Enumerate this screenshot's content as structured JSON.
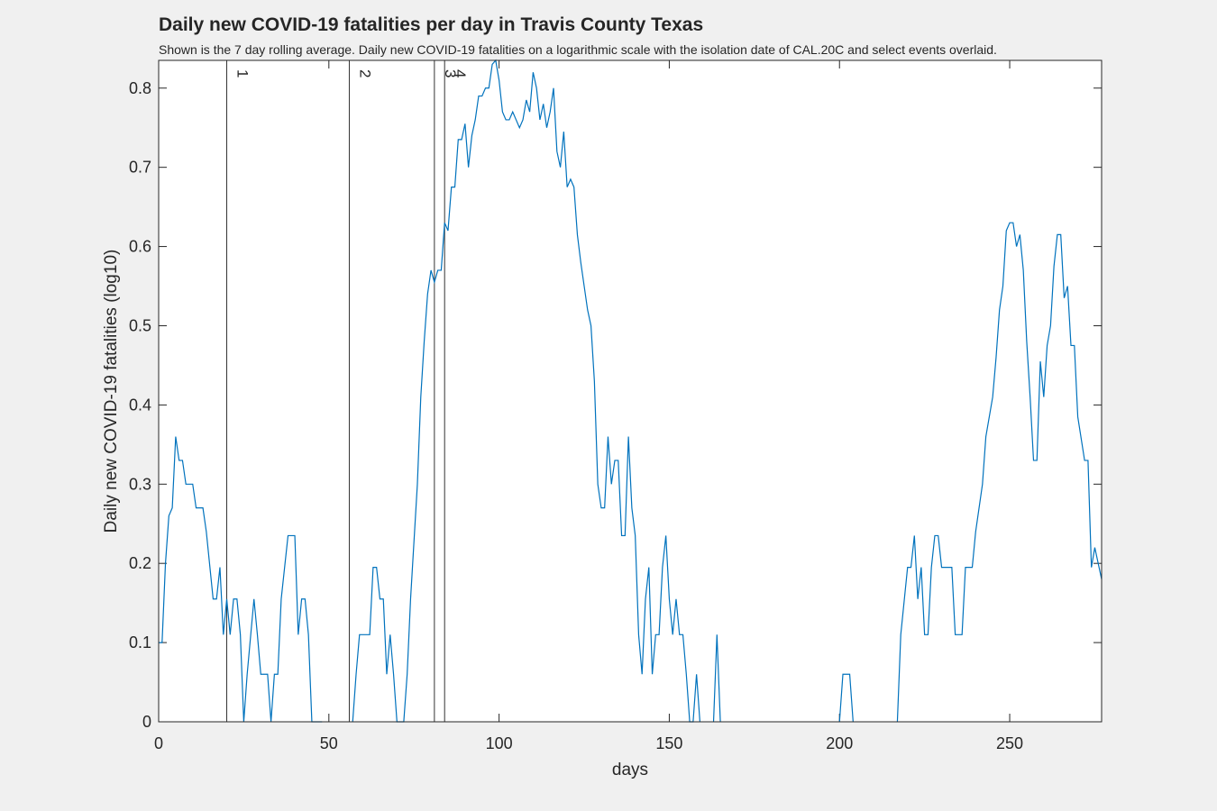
{
  "chart_data": {
    "type": "line",
    "title": "Daily new COVID-19 fatalities per day in Travis County Texas",
    "subtitle": "Shown is the 7 day rolling average. Daily new COVID-19 fatalities on a logarithmic scale with the isolation date of CAL.20C and select events overlaid.",
    "xlabel": "days",
    "ylabel": "Daily new COVID-19 fatalities (log10)",
    "color": "#0072bd",
    "xlim": [
      0,
      277
    ],
    "ylim": [
      0,
      0.835
    ],
    "xticks": [
      0,
      50,
      100,
      150,
      200,
      250
    ],
    "yticks": [
      0,
      0.1,
      0.2,
      0.3,
      0.4,
      0.5,
      0.6,
      0.7,
      0.8
    ],
    "events": [
      {
        "x": 20,
        "label": "1"
      },
      {
        "x": 56,
        "label": "2"
      },
      {
        "x": 81,
        "label": "3"
      },
      {
        "x": 84,
        "label": "4"
      }
    ],
    "x": [
      0,
      1,
      2,
      3,
      4,
      5,
      6,
      7,
      8,
      10,
      11,
      13,
      14,
      16,
      17,
      18,
      19,
      20,
      21,
      22,
      23,
      24,
      25,
      26,
      28,
      29,
      30,
      32,
      33,
      34,
      35,
      36,
      38,
      40,
      41,
      42,
      43,
      44,
      45,
      48,
      52,
      57,
      58,
      59,
      62,
      63,
      64,
      65,
      66,
      67,
      68,
      69,
      70,
      72,
      73,
      74,
      76,
      77,
      78,
      79,
      80,
      81,
      82,
      83,
      84,
      85,
      86,
      87,
      88,
      89,
      90,
      91,
      92,
      93,
      94,
      95,
      96,
      97,
      98,
      99,
      100,
      101,
      102,
      103,
      104,
      105,
      106,
      107,
      108,
      109,
      110,
      111,
      112,
      113,
      114,
      115,
      116,
      117,
      118,
      119,
      120,
      121,
      122,
      123,
      124,
      125,
      126,
      127,
      128,
      129,
      130,
      131,
      132,
      133,
      134,
      135,
      136,
      137,
      138,
      139,
      140,
      141,
      142,
      143,
      144,
      145,
      146,
      147,
      148,
      149,
      150,
      151,
      152,
      153,
      154,
      155,
      156,
      157,
      158,
      159,
      161,
      163,
      164,
      165,
      180,
      200,
      201,
      203,
      204,
      210,
      217,
      218,
      220,
      221,
      222,
      223,
      224,
      225,
      226,
      227,
      228,
      229,
      230,
      233,
      234,
      236,
      237,
      239,
      240,
      242,
      243,
      245,
      246,
      247,
      248,
      249,
      250,
      251,
      252,
      253,
      254,
      255,
      256,
      257,
      258,
      259,
      260,
      261,
      262,
      263,
      264,
      265,
      266,
      267,
      268,
      269,
      270,
      272,
      273,
      274,
      275,
      276,
      277
    ],
    "values": [
      0.1,
      0.1,
      0.2,
      0.26,
      0.27,
      0.36,
      0.33,
      0.33,
      0.3,
      0.3,
      0.27,
      0.27,
      0.24,
      0.155,
      0.155,
      0.195,
      0.11,
      0.155,
      0.11,
      0.155,
      0.155,
      0.11,
      0,
      0.06,
      0.155,
      0.11,
      0.06,
      0.06,
      0,
      0.06,
      0.06,
      0.155,
      0.235,
      0.235,
      0.11,
      0.155,
      0.155,
      0.11,
      0,
      0,
      null,
      0,
      0.06,
      0.11,
      0.11,
      0.195,
      0.195,
      0.155,
      0.155,
      0.06,
      0.11,
      0.06,
      0,
      0,
      0.06,
      0.155,
      0.3,
      0.41,
      0.48,
      0.54,
      0.57,
      0.555,
      0.57,
      0.57,
      0.63,
      0.62,
      0.675,
      0.675,
      0.735,
      0.735,
      0.755,
      0.7,
      0.74,
      0.76,
      0.79,
      0.79,
      0.8,
      0.8,
      0.83,
      0.835,
      0.81,
      0.77,
      0.76,
      0.76,
      0.77,
      0.76,
      0.75,
      0.76,
      0.785,
      0.77,
      0.82,
      0.8,
      0.76,
      0.78,
      0.75,
      0.77,
      0.8,
      0.72,
      0.7,
      0.745,
      0.675,
      0.685,
      0.675,
      0.615,
      0.58,
      0.55,
      0.52,
      0.5,
      0.43,
      0.3,
      0.27,
      0.27,
      0.36,
      0.3,
      0.33,
      0.33,
      0.235,
      0.235,
      0.36,
      0.27,
      0.235,
      0.11,
      0.06,
      0.155,
      0.195,
      0.06,
      0.11,
      0.11,
      0.195,
      0.235,
      0.155,
      0.11,
      0.155,
      0.11,
      0.11,
      0.06,
      0,
      0,
      0.06,
      0,
      null,
      0,
      0.11,
      0,
      null,
      0,
      0.06,
      0.06,
      0,
      null,
      0,
      0.11,
      0.195,
      0.195,
      0.235,
      0.155,
      0.195,
      0.11,
      0.11,
      0.195,
      0.235,
      0.235,
      0.195,
      0.195,
      0.11,
      0.11,
      0.195,
      0.195,
      0.24,
      0.3,
      0.36,
      0.41,
      0.46,
      0.52,
      0.55,
      0.62,
      0.63,
      0.63,
      0.6,
      0.615,
      0.57,
      0.48,
      0.41,
      0.33,
      0.33,
      0.455,
      0.41,
      0.475,
      0.5,
      0.575,
      0.615,
      0.615,
      0.535,
      0.55,
      0.475,
      0.475,
      0.385,
      0.33,
      0.33,
      0.195,
      0.22,
      0.2,
      0.18
    ]
  }
}
